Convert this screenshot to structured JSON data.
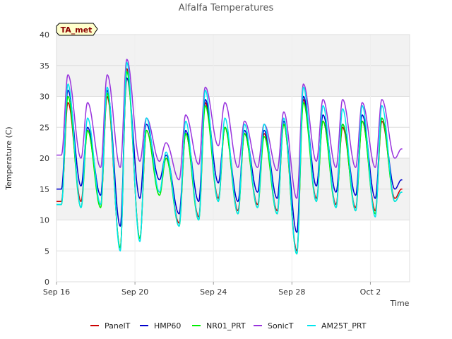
{
  "chart_data": {
    "type": "line",
    "title": "Alfalfa Temperatures",
    "xlabel": "Time",
    "ylabel": "Temperature (C)",
    "badge": "TA_met",
    "ylim": [
      0,
      40
    ],
    "yticks": [
      0,
      5,
      10,
      15,
      20,
      25,
      30,
      35,
      40
    ],
    "xlim": [
      "2023-09-16",
      "2023-10-04"
    ],
    "xticks": [
      {
        "date": "2023-09-16",
        "label": "Sep 16"
      },
      {
        "date": "2023-09-20",
        "label": "Sep 20"
      },
      {
        "date": "2023-09-24",
        "label": "Sep 24"
      },
      {
        "date": "2023-09-28",
        "label": "Sep 28"
      },
      {
        "date": "2023-10-02",
        "label": "Oct 2"
      }
    ],
    "grid": true,
    "legend_position": "bottom",
    "series": [
      {
        "name": "PanelT",
        "color": "#cc0000",
        "daily": [
          {
            "date": "2023-09-16",
            "min": 13.0,
            "max": 29.0
          },
          {
            "date": "2023-09-17",
            "min": 13.0,
            "max": 24.5
          },
          {
            "date": "2023-09-18",
            "min": 12.5,
            "max": 30.0
          },
          {
            "date": "2023-09-19",
            "min": 5.5,
            "max": 34.5
          },
          {
            "date": "2023-09-20",
            "min": 7.0,
            "max": 24.5
          },
          {
            "date": "2023-09-21",
            "min": 14.5,
            "max": 20.0
          },
          {
            "date": "2023-09-22",
            "min": 9.5,
            "max": 24.0
          },
          {
            "date": "2023-09-23",
            "min": 10.5,
            "max": 29.0
          },
          {
            "date": "2023-09-24",
            "min": 13.5,
            "max": 25.0
          },
          {
            "date": "2023-09-25",
            "min": 11.5,
            "max": 24.0
          },
          {
            "date": "2023-09-26",
            "min": 12.5,
            "max": 24.0
          },
          {
            "date": "2023-09-27",
            "min": 11.5,
            "max": 25.5
          },
          {
            "date": "2023-09-28",
            "min": 5.0,
            "max": 29.5
          },
          {
            "date": "2023-09-29",
            "min": 13.5,
            "max": 26.0
          },
          {
            "date": "2023-09-30",
            "min": 12.5,
            "max": 25.0
          },
          {
            "date": "2023-10-01",
            "min": 12.0,
            "max": 26.0
          },
          {
            "date": "2023-10-02",
            "min": 11.5,
            "max": 26.0
          },
          {
            "date": "2023-10-03",
            "min": 13.5,
            "max": 15.0
          }
        ]
      },
      {
        "name": "HMP60",
        "color": "#0000cc",
        "daily": [
          {
            "date": "2023-09-16",
            "min": 15.0,
            "max": 31.0
          },
          {
            "date": "2023-09-17",
            "min": 15.5,
            "max": 25.0
          },
          {
            "date": "2023-09-18",
            "min": 14.0,
            "max": 31.0
          },
          {
            "date": "2023-09-19",
            "min": 9.0,
            "max": 33.0
          },
          {
            "date": "2023-09-20",
            "min": 13.5,
            "max": 25.5
          },
          {
            "date": "2023-09-21",
            "min": 16.5,
            "max": 20.5
          },
          {
            "date": "2023-09-22",
            "min": 11.0,
            "max": 24.5
          },
          {
            "date": "2023-09-23",
            "min": 13.0,
            "max": 29.5
          },
          {
            "date": "2023-09-24",
            "min": 16.0,
            "max": 25.0
          },
          {
            "date": "2023-09-25",
            "min": 13.0,
            "max": 24.5
          },
          {
            "date": "2023-09-26",
            "min": 14.5,
            "max": 24.5
          },
          {
            "date": "2023-09-27",
            "min": 13.5,
            "max": 26.0
          },
          {
            "date": "2023-09-28",
            "min": 8.0,
            "max": 30.0
          },
          {
            "date": "2023-09-29",
            "min": 15.5,
            "max": 27.0
          },
          {
            "date": "2023-09-30",
            "min": 14.5,
            "max": 25.5
          },
          {
            "date": "2023-10-01",
            "min": 14.0,
            "max": 27.0
          },
          {
            "date": "2023-10-02",
            "min": 13.5,
            "max": 26.5
          },
          {
            "date": "2023-10-03",
            "min": 15.0,
            "max": 16.5
          }
        ]
      },
      {
        "name": "NR01_PRT",
        "color": "#00ee00",
        "daily": [
          {
            "date": "2023-09-16",
            "min": 12.5,
            "max": 30.0
          },
          {
            "date": "2023-09-17",
            "min": 12.0,
            "max": 24.5
          },
          {
            "date": "2023-09-18",
            "min": 12.0,
            "max": 30.5
          },
          {
            "date": "2023-09-19",
            "min": 5.5,
            "max": 34.0
          },
          {
            "date": "2023-09-20",
            "min": 7.0,
            "max": 24.5
          },
          {
            "date": "2023-09-21",
            "min": 14.0,
            "max": 20.0
          },
          {
            "date": "2023-09-22",
            "min": 9.0,
            "max": 24.0
          },
          {
            "date": "2023-09-23",
            "min": 10.0,
            "max": 28.5
          },
          {
            "date": "2023-09-24",
            "min": 13.0,
            "max": 25.0
          },
          {
            "date": "2023-09-25",
            "min": 11.0,
            "max": 24.0
          },
          {
            "date": "2023-09-26",
            "min": 12.0,
            "max": 23.5
          },
          {
            "date": "2023-09-27",
            "min": 11.0,
            "max": 25.5
          },
          {
            "date": "2023-09-28",
            "min": 4.5,
            "max": 29.0
          },
          {
            "date": "2023-09-29",
            "min": 13.0,
            "max": 26.0
          },
          {
            "date": "2023-09-30",
            "min": 12.0,
            "max": 25.5
          },
          {
            "date": "2023-10-01",
            "min": 11.5,
            "max": 26.0
          },
          {
            "date": "2023-10-02",
            "min": 11.0,
            "max": 26.5
          },
          {
            "date": "2023-10-03",
            "min": 13.0,
            "max": 14.5
          }
        ]
      },
      {
        "name": "SonicT",
        "color": "#9933dd",
        "daily": [
          {
            "date": "2023-09-16",
            "min": 20.5,
            "max": 33.5
          },
          {
            "date": "2023-09-17",
            "min": 20.0,
            "max": 29.0
          },
          {
            "date": "2023-09-18",
            "min": 18.5,
            "max": 33.5
          },
          {
            "date": "2023-09-19",
            "min": 18.5,
            "max": 36.0
          },
          {
            "date": "2023-09-20",
            "min": 19.5,
            "max": 26.5
          },
          {
            "date": "2023-09-21",
            "min": 19.5,
            "max": 22.5
          },
          {
            "date": "2023-09-22",
            "min": 16.5,
            "max": 27.0
          },
          {
            "date": "2023-09-23",
            "min": 19.0,
            "max": 31.5
          },
          {
            "date": "2023-09-24",
            "min": 22.0,
            "max": 29.0
          },
          {
            "date": "2023-09-25",
            "min": 18.5,
            "max": 26.0
          },
          {
            "date": "2023-09-26",
            "min": 18.5,
            "max": 25.5
          },
          {
            "date": "2023-09-27",
            "min": 18.0,
            "max": 27.5
          },
          {
            "date": "2023-09-28",
            "min": 13.5,
            "max": 32.0
          },
          {
            "date": "2023-09-29",
            "min": 19.5,
            "max": 29.5
          },
          {
            "date": "2023-09-30",
            "min": 18.5,
            "max": 29.5
          },
          {
            "date": "2023-10-01",
            "min": 18.5,
            "max": 29.0
          },
          {
            "date": "2023-10-02",
            "min": 18.5,
            "max": 29.5
          },
          {
            "date": "2023-10-03",
            "min": 20.0,
            "max": 21.5
          }
        ]
      },
      {
        "name": "AM25T_PRT",
        "color": "#00e5ee",
        "daily": [
          {
            "date": "2023-09-16",
            "min": 12.5,
            "max": 32.0
          },
          {
            "date": "2023-09-17",
            "min": 12.0,
            "max": 26.5
          },
          {
            "date": "2023-09-18",
            "min": 12.5,
            "max": 31.5
          },
          {
            "date": "2023-09-19",
            "min": 5.0,
            "max": 35.5
          },
          {
            "date": "2023-09-20",
            "min": 6.5,
            "max": 26.5
          },
          {
            "date": "2023-09-21",
            "min": 14.5,
            "max": 21.0
          },
          {
            "date": "2023-09-22",
            "min": 9.0,
            "max": 26.0
          },
          {
            "date": "2023-09-23",
            "min": 10.0,
            "max": 31.0
          },
          {
            "date": "2023-09-24",
            "min": 13.0,
            "max": 26.5
          },
          {
            "date": "2023-09-25",
            "min": 11.0,
            "max": 25.5
          },
          {
            "date": "2023-09-26",
            "min": 12.0,
            "max": 25.5
          },
          {
            "date": "2023-09-27",
            "min": 11.0,
            "max": 26.5
          },
          {
            "date": "2023-09-28",
            "min": 4.5,
            "max": 31.5
          },
          {
            "date": "2023-09-29",
            "min": 13.0,
            "max": 28.5
          },
          {
            "date": "2023-09-30",
            "min": 12.0,
            "max": 28.0
          },
          {
            "date": "2023-10-01",
            "min": 11.5,
            "max": 28.5
          },
          {
            "date": "2023-10-02",
            "min": 10.5,
            "max": 28.5
          },
          {
            "date": "2023-10-03",
            "min": 13.0,
            "max": 14.5
          }
        ]
      }
    ]
  }
}
